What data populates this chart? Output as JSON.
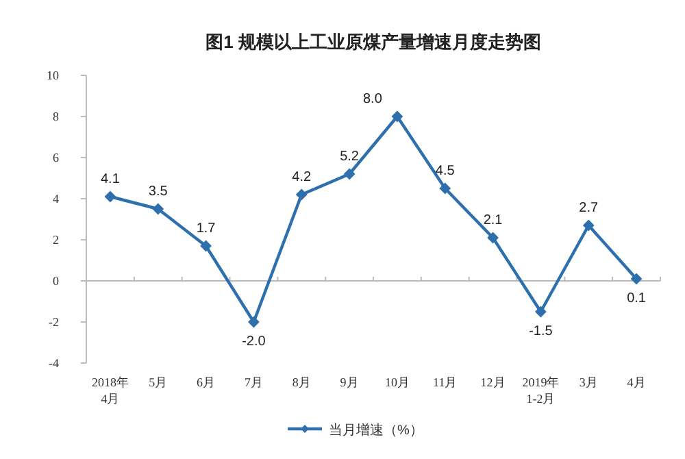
{
  "chart_data": {
    "type": "line",
    "title": "图1  规模以上工业原煤产量增速月度走势图",
    "categories": [
      "2018年4月",
      "5月",
      "6月",
      "7月",
      "8月",
      "9月",
      "10月",
      "11月",
      "12月",
      "2019年1-2月",
      "3月",
      "4月"
    ],
    "series": [
      {
        "name": "当月增速（%）",
        "color": "#2e6fad",
        "values": [
          4.1,
          3.5,
          1.7,
          -2.0,
          4.2,
          5.2,
          8.0,
          4.5,
          2.1,
          -1.5,
          2.7,
          0.1
        ],
        "value_labels": [
          "4.1",
          "3.5",
          "1.7",
          "-2.0",
          "4.2",
          "5.2",
          "8.0",
          "4.5",
          "2.1",
          "-1.5",
          "2.7",
          "0.1"
        ]
      }
    ],
    "ylim": [
      -4,
      10
    ],
    "yticks": [
      -4,
      -2,
      0,
      2,
      4,
      6,
      8,
      10
    ],
    "marker": "diamond",
    "line_style": "solid",
    "legend": "bottom"
  }
}
